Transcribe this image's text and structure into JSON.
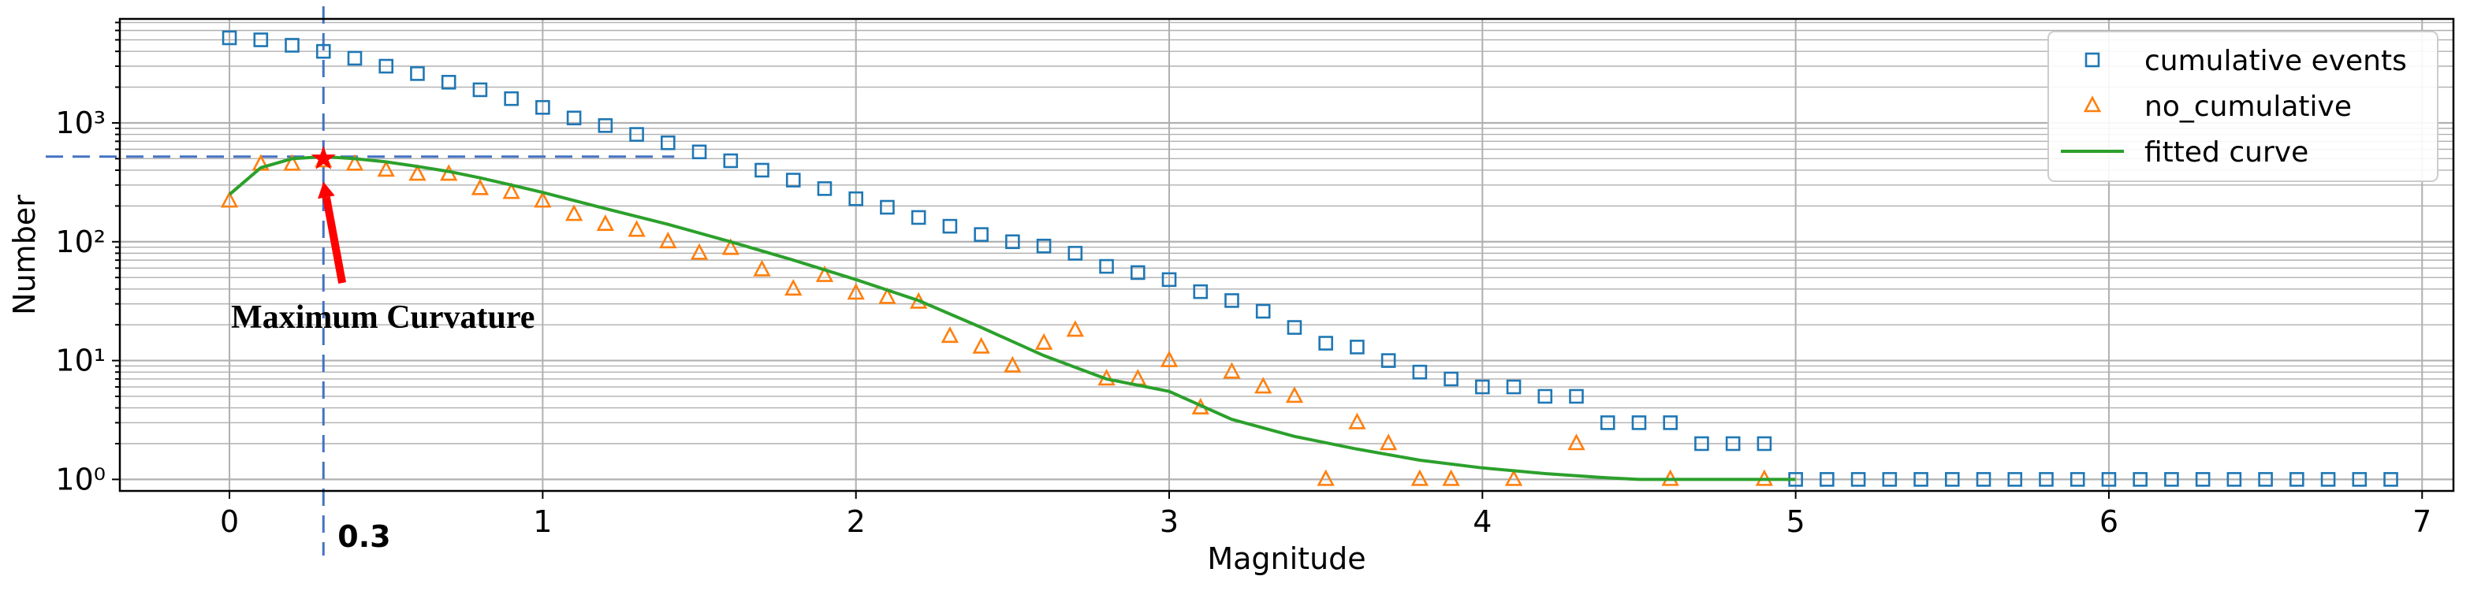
{
  "chart_data": {
    "type": "scatter",
    "xlabel": "Magnitude",
    "ylabel": "Number",
    "yscale": "log",
    "xlim": [
      -0.35,
      7.1
    ],
    "ylim": [
      0.8,
      7500
    ],
    "xticks": [
      0,
      1,
      2,
      3,
      4,
      5,
      6,
      7
    ],
    "xtick_labels": [
      "0",
      "1",
      "2",
      "3",
      "4",
      "5",
      "6",
      "7"
    ],
    "yticks": [
      1,
      10,
      100,
      1000
    ],
    "ytick_labels": [
      "10⁰",
      "10¹",
      "10²",
      "10³"
    ],
    "grid": true,
    "legend_position": "top-right",
    "series": [
      {
        "name": "cumulative events",
        "kind": "marker",
        "marker": "square",
        "color": "#1f77b4",
        "x": [
          0.0,
          0.1,
          0.2,
          0.3,
          0.4,
          0.5,
          0.6,
          0.7,
          0.8,
          0.9,
          1.0,
          1.1,
          1.2,
          1.3,
          1.4,
          1.5,
          1.6,
          1.7,
          1.8,
          1.9,
          2.0,
          2.1,
          2.2,
          2.3,
          2.4,
          2.5,
          2.6,
          2.7,
          2.8,
          2.9,
          3.0,
          3.1,
          3.2,
          3.3,
          3.4,
          3.5,
          3.6,
          3.7,
          3.8,
          3.9,
          4.0,
          4.1,
          4.2,
          4.3,
          4.4,
          4.5,
          4.6,
          4.7,
          4.8,
          4.9,
          5.0,
          5.1,
          5.2,
          5.3,
          5.4,
          5.5,
          5.6,
          5.7,
          5.8,
          5.9,
          6.0,
          6.1,
          6.2,
          6.3,
          6.4,
          6.5,
          6.6,
          6.7,
          6.8,
          6.9
        ],
        "y": [
          5200,
          5000,
          4500,
          4000,
          3500,
          3000,
          2600,
          2200,
          1900,
          1600,
          1350,
          1100,
          950,
          800,
          680,
          570,
          480,
          400,
          330,
          280,
          230,
          195,
          160,
          135,
          115,
          100,
          92,
          80,
          62,
          55,
          48,
          38,
          32,
          26,
          19,
          14,
          13,
          10,
          8,
          7,
          6,
          6,
          5,
          5,
          3,
          3,
          3,
          2,
          2,
          2,
          1,
          1,
          1,
          1,
          1,
          1,
          1,
          1,
          1,
          1,
          1,
          1,
          1,
          1,
          1,
          1,
          1,
          1,
          1,
          1
        ]
      },
      {
        "name": "no_cumulative",
        "kind": "marker",
        "marker": "triangle",
        "color": "#ff7f0e",
        "x": [
          0.0,
          0.1,
          0.2,
          0.3,
          0.4,
          0.5,
          0.6,
          0.7,
          0.8,
          0.9,
          1.0,
          1.1,
          1.2,
          1.3,
          1.4,
          1.5,
          1.6,
          1.7,
          1.8,
          1.9,
          2.0,
          2.1,
          2.2,
          2.3,
          2.4,
          2.5,
          2.6,
          2.7,
          2.8,
          2.9,
          3.0,
          3.1,
          3.2,
          3.3,
          3.4,
          3.5,
          3.6,
          3.7,
          3.8,
          3.9,
          4.1,
          4.3,
          4.6,
          4.9
        ],
        "y": [
          220,
          450,
          450,
          480,
          450,
          400,
          370,
          370,
          280,
          260,
          220,
          170,
          140,
          125,
          100,
          80,
          88,
          58,
          40,
          52,
          37,
          34,
          31,
          16,
          13,
          9,
          14,
          18,
          7,
          7,
          10,
          4,
          8,
          6,
          5,
          1,
          3,
          2,
          1,
          1,
          1,
          2,
          1,
          1
        ]
      },
      {
        "name": "fitted curve",
        "kind": "line",
        "color": "#2ca02c",
        "x": [
          0.0,
          0.1,
          0.2,
          0.3,
          0.4,
          0.5,
          0.6,
          0.7,
          0.8,
          0.9,
          1.0,
          1.2,
          1.4,
          1.6,
          1.8,
          2.0,
          2.2,
          2.4,
          2.6,
          2.8,
          3.0,
          3.2,
          3.4,
          3.6,
          3.8,
          4.0,
          4.2,
          4.4,
          4.5,
          4.6,
          4.8,
          5.0
        ],
        "y": [
          250,
          420,
          500,
          520,
          500,
          470,
          430,
          390,
          345,
          300,
          260,
          190,
          140,
          100,
          70,
          48,
          32,
          19,
          11,
          7,
          5.5,
          3.2,
          2.3,
          1.8,
          1.45,
          1.25,
          1.12,
          1.03,
          1.0,
          1.0,
          1.0,
          1.0
        ]
      }
    ],
    "annotations": {
      "text": "Maximum Curvature",
      "vline_label": "0.3",
      "vline_x": 0.3,
      "hline_y": 520,
      "star_x": 0.3,
      "star_y": 500,
      "arrow_from": [
        0.36,
        45
      ],
      "arrow_to": [
        0.3,
        320
      ],
      "text_at": [
        0.0,
        22
      ]
    },
    "colors": {
      "guide": "#4472c4",
      "star": "#ff0000",
      "arrow": "#ff0000",
      "grid": "#b0b0b0"
    }
  }
}
